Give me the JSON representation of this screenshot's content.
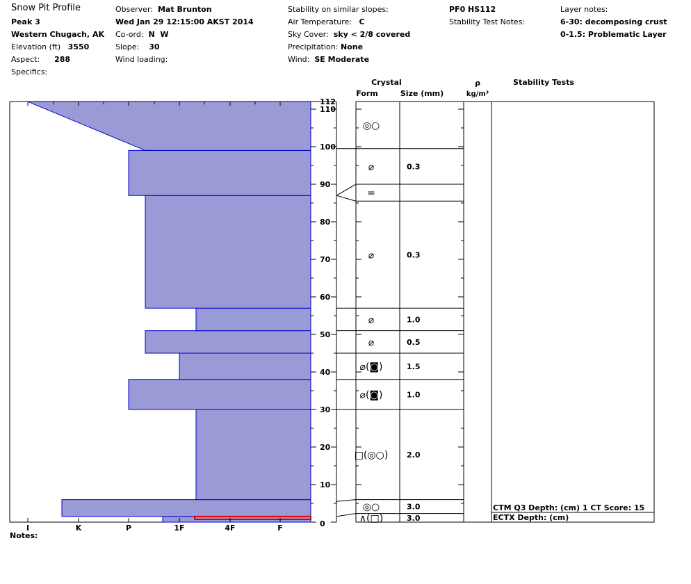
{
  "header": {
    "title": "Snow Pit Profile",
    "location": "Peak 3",
    "region": "Western Chugach, AK",
    "elevation_label": "Elevation (ft)",
    "elevation": "3550",
    "aspect_label": "Aspect:",
    "aspect": "288",
    "specifics_label": "Specifics:",
    "observer_label": "Observer:",
    "observer": "Mat Brunton",
    "datetime": "Wed Jan 29 12:15:00 AKST 2014",
    "coord_label": "Co-ord:",
    "coord": "N  W",
    "slope_label": "Slope:",
    "slope": "30",
    "wind_loading_label": "Wind loading:",
    "stability_label": "Stability on similar slopes:",
    "air_temp_label": "Air Temperature:",
    "air_temp": "C",
    "sky_label": "Sky Cover:",
    "sky": "sky < 2/8 covered",
    "precip_label": "Precipitation:",
    "precip": "None",
    "wind_label": "Wind:",
    "wind": "SE Moderate",
    "pit_id": "PF0 HS112",
    "stability_notes_label": "Stability Test Notes:",
    "layer_notes_label": "Layer notes:",
    "layer_note_1": "6-30: decomposing crust",
    "layer_note_2": "0-1.5: Problematic Layer"
  },
  "columns": {
    "crystal": "Crystal",
    "form": "Form",
    "size": "Size (mm)",
    "rho": "ρ",
    "density_unit": "kg/m³",
    "stability_tests": "Stability Tests"
  },
  "notes_label": "Notes:",
  "colors": {
    "hardness_fill": "#9a9ad6",
    "hardness_stroke": "#0000cc",
    "problem_layer": "#e00000"
  },
  "chart_data": {
    "type": "area",
    "ylabel": "",
    "xlabel": "",
    "ylim": [
      0,
      112
    ],
    "y_ticks": [
      10,
      20,
      30,
      40,
      50,
      60,
      70,
      80,
      90,
      100,
      110,
      112
    ],
    "x_categories": [
      "I",
      "K",
      "P",
      "1F",
      "4F",
      "F"
    ],
    "hardness_layers": [
      {
        "bottom": 0,
        "top": 1.5,
        "hardness": "1F-"
      },
      {
        "bottom": 1.5,
        "top": 6,
        "hardness": "K-"
      },
      {
        "bottom": 6,
        "top": 30,
        "hardness": "1F+"
      },
      {
        "bottom": 30,
        "top": 38,
        "hardness": "P"
      },
      {
        "bottom": 38,
        "top": 45,
        "hardness": "1F"
      },
      {
        "bottom": 45,
        "top": 51,
        "hardness": "P+"
      },
      {
        "bottom": 51,
        "top": 57,
        "hardness": "1F+"
      },
      {
        "bottom": 57,
        "top": 87,
        "hardness": "P+"
      },
      {
        "bottom": 87,
        "top": 99,
        "hardness": "P"
      },
      {
        "bottom": 99,
        "top": 112,
        "hardness_bottom": "P+",
        "hardness_top": "I"
      }
    ],
    "crystal_layers": [
      {
        "bottom": 0,
        "top": 2.3,
        "form": "∧(□)",
        "size": "3.0"
      },
      {
        "bottom": 2.3,
        "top": 6,
        "form": "◎○",
        "size": "3.0"
      },
      {
        "bottom": 6,
        "top": 30,
        "form": "□(◎○)",
        "size": "2.0"
      },
      {
        "bottom": 30,
        "top": 38,
        "form": "⌀(◙)",
        "size": "1.0"
      },
      {
        "bottom": 38,
        "top": 45,
        "form": "⌀(◙)",
        "size": "1.5"
      },
      {
        "bottom": 45,
        "top": 51,
        "form": "⌀",
        "size": "0.5"
      },
      {
        "bottom": 51,
        "top": 57,
        "form": "⌀",
        "size": "1.0"
      },
      {
        "bottom": 57,
        "top": 85.5,
        "form": "⌀",
        "size": "0.3"
      },
      {
        "bottom": 85.5,
        "top": 90,
        "form": "=",
        "size": ""
      },
      {
        "bottom": 90,
        "top": 99.5,
        "form": "⌀",
        "size": "0.3"
      },
      {
        "bottom": 99.5,
        "top": 112,
        "form": "◎○",
        "size": ""
      }
    ],
    "problem_layer": {
      "bottom": 0,
      "top": 1.5
    },
    "stability_tests": [
      "CTM Q3 Depth: (cm) 1 CT Score: 15",
      "ECTX   Depth: (cm)"
    ]
  }
}
